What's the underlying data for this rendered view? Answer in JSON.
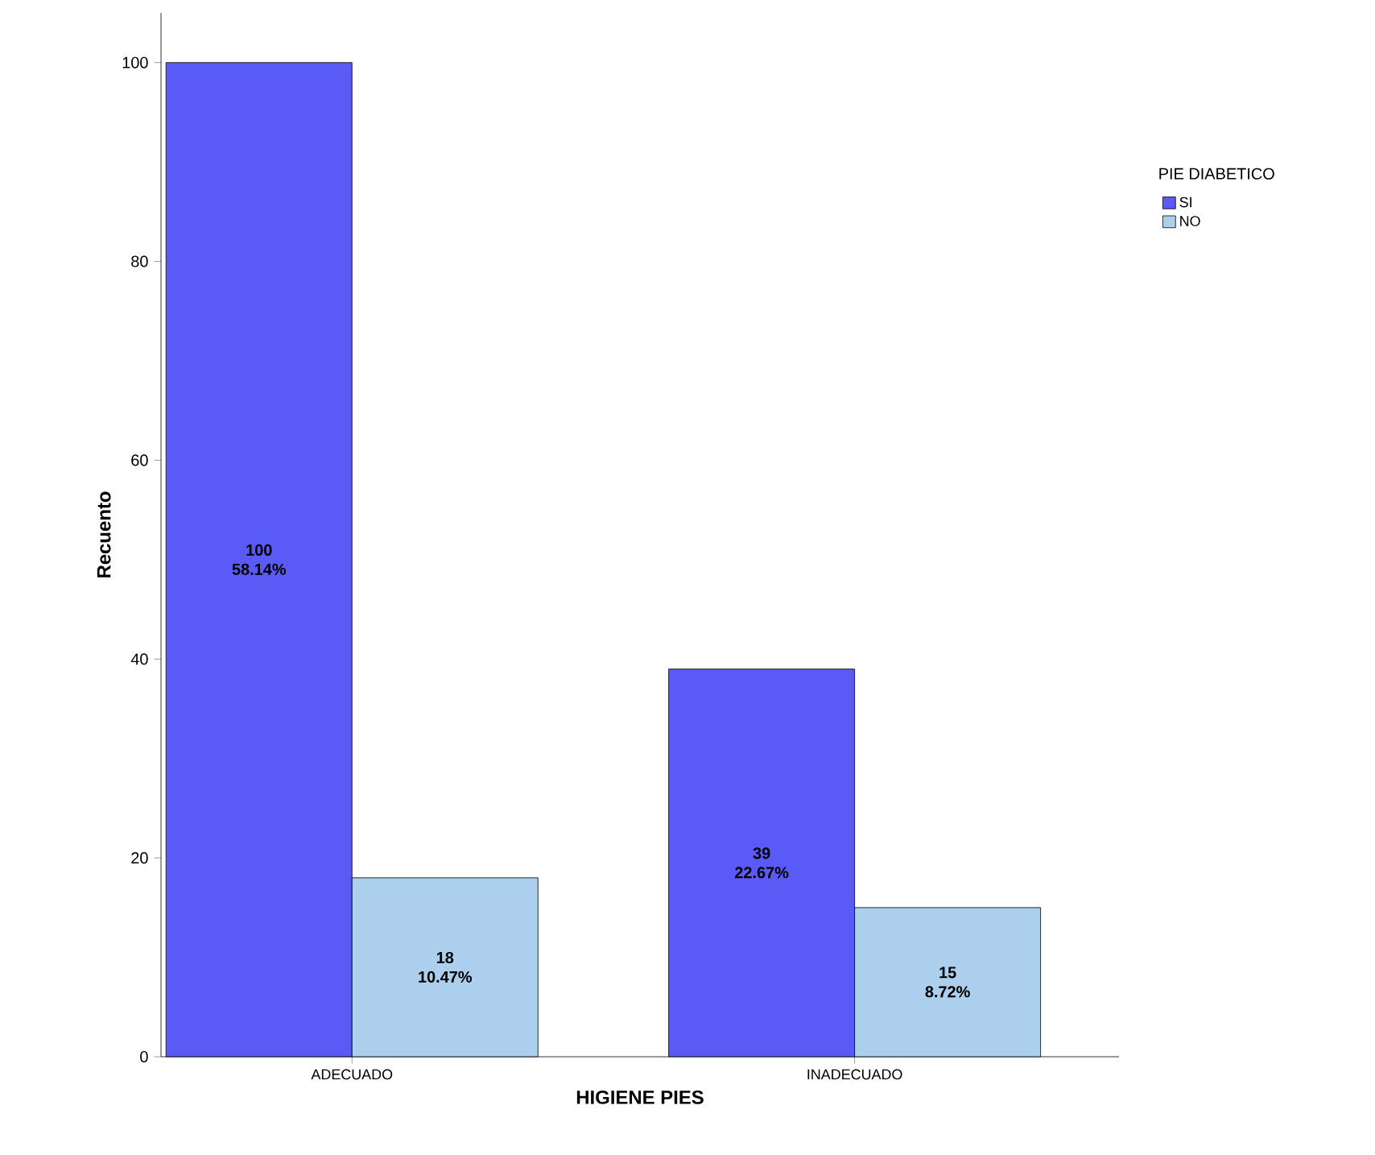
{
  "chart_data": {
    "type": "bar",
    "xlabel": "HIGIENE PIES",
    "ylabel": "Recuento",
    "legend_title": "PIE DIABETICO",
    "legend": "right",
    "categories": [
      "ADECUADO",
      "INADECUADO"
    ],
    "series": [
      {
        "name": "SI",
        "color": "#5a5af7",
        "values": [
          100,
          39
        ],
        "value_labels": [
          "100 58.14%",
          "39 22.67%"
        ]
      },
      {
        "name": "NO",
        "color": "#abcfec",
        "values": [
          18,
          15
        ],
        "value_labels": [
          "18 10.47%",
          "15 8.72%"
        ]
      }
    ],
    "ylim": [
      0,
      105
    ],
    "yticks": [
      0,
      20,
      40,
      60,
      80,
      100
    ]
  }
}
